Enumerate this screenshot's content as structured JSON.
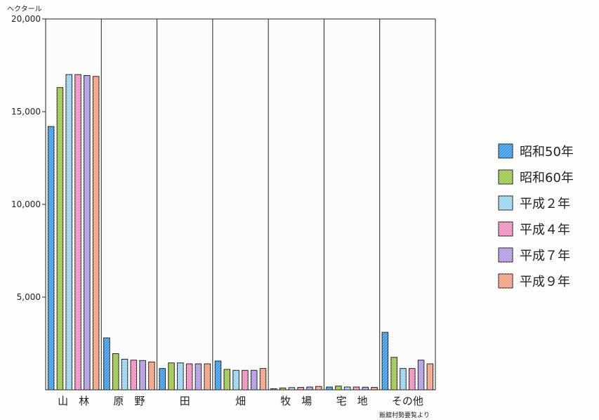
{
  "chart_data": {
    "type": "bar",
    "y_unit": "ヘクタール",
    "source": "飯舘村勢要覧より",
    "categories": [
      "山　林",
      "原　野",
      "田",
      "畑",
      "牧　場",
      "宅　地",
      "その他"
    ],
    "ylim": [
      0,
      20000
    ],
    "yticks": [
      5000,
      10000,
      15000,
      20000
    ],
    "ytick_labels": [
      "5,000",
      "10,000",
      "15,000",
      "20,000"
    ],
    "legend_position": "right",
    "series": [
      {
        "name": "昭和50年",
        "color": "#3a9ae8",
        "values": [
          14200,
          2800,
          1150,
          1550,
          60,
          150,
          3100
        ]
      },
      {
        "name": "昭和60年",
        "color": "#9cc64a",
        "values": [
          16300,
          1950,
          1450,
          1100,
          100,
          200,
          1750
        ]
      },
      {
        "name": "平成２年",
        "color": "#9bd4f0",
        "values": [
          17000,
          1650,
          1450,
          1050,
          120,
          150,
          1150
        ]
      },
      {
        "name": "平成４年",
        "color": "#f08fc0",
        "values": [
          17000,
          1600,
          1400,
          1050,
          130,
          150,
          1150
        ]
      },
      {
        "name": "平成７年",
        "color": "#b09ae0",
        "values": [
          16950,
          1580,
          1400,
          1050,
          150,
          140,
          1600
        ]
      },
      {
        "name": "平成９年",
        "color": "#f3a083",
        "values": [
          16900,
          1500,
          1400,
          1150,
          180,
          130,
          1400
        ]
      }
    ]
  }
}
